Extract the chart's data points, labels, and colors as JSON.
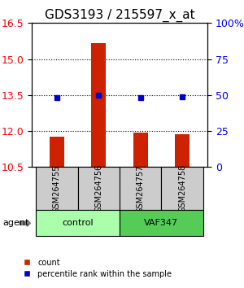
{
  "title": "GDS3193 / 215597_x_at",
  "samples": [
    "GSM264755",
    "GSM264756",
    "GSM264757",
    "GSM264758"
  ],
  "bar_values": [
    11.75,
    15.65,
    11.95,
    11.85
  ],
  "dot_values": [
    13.38,
    13.5,
    13.38,
    13.42
  ],
  "bar_bottom": 10.5,
  "ylim_left": [
    10.5,
    16.5
  ],
  "yticks_left": [
    10.5,
    12,
    13.5,
    15,
    16.5
  ],
  "yticks_right": [
    0,
    25,
    50,
    75,
    100
  ],
  "ylim_right": [
    0,
    100
  ],
  "hlines": [
    12,
    13.5,
    15
  ],
  "groups": [
    {
      "label": "control",
      "samples": [
        0,
        1
      ],
      "color": "#aaffaa"
    },
    {
      "label": "VAF347",
      "samples": [
        2,
        3
      ],
      "color": "#55cc55"
    }
  ],
  "bar_color": "#cc2200",
  "dot_color": "#0000cc",
  "sample_box_color": "#cccccc",
  "agent_label": "agent",
  "legend_count_label": "count",
  "legend_pct_label": "percentile rank within the sample",
  "bar_width": 0.35,
  "title_fontsize": 11,
  "tick_fontsize": 9,
  "label_fontsize": 9
}
